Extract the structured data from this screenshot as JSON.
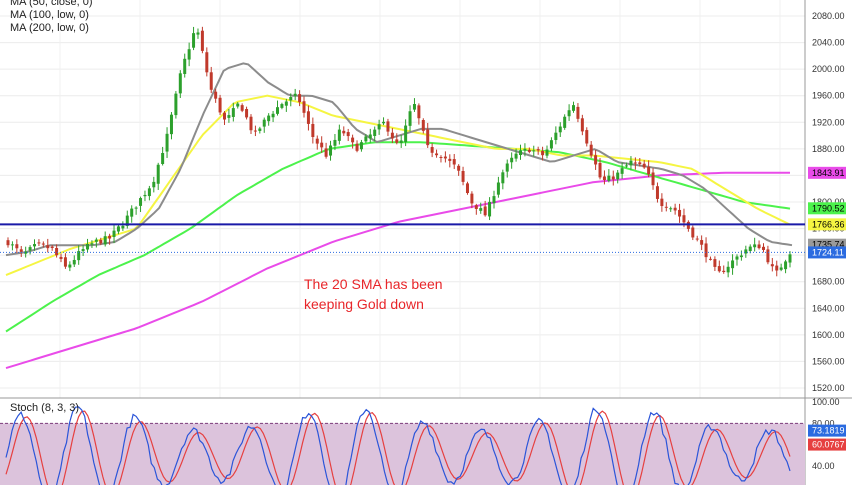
{
  "legend": {
    "ma50": "MA (50, close, 0)",
    "ma100": "MA (100, low, 0)",
    "ma200": "MA (200, low, 0)",
    "stoch": "Stoch (8, 3, 3)"
  },
  "annotation": {
    "line1": "The 20 SMA has been",
    "line2": "keeping Gold down"
  },
  "colors": {
    "bull": "#2ca02c",
    "bear": "#c0392b",
    "ma20": "#8c8c8c",
    "ma50": "#f5f542",
    "ma100": "#4cf24c",
    "ma200": "#e94be9",
    "support": "#1a1aa8",
    "stochK": "#2b55d9",
    "stochD": "#e64040",
    "stochBg": "#dcc3dc"
  },
  "chart_data": [
    {
      "type": "candlestick",
      "title": "",
      "y_ticks": [
        2080.0,
        2040.0,
        2000.0,
        1960.0,
        1920.0,
        1880.0,
        1840.0,
        1800.0,
        1760.0,
        1720.0,
        1680.0,
        1640.0,
        1600.0,
        1560.0,
        1520.0
      ],
      "ylim": [
        1500,
        2100
      ],
      "support_level": 1766.36,
      "last_price_dotted": 1724.11,
      "price_tags": [
        {
          "value": 1843.91,
          "label": "1843.91",
          "bg": "#e94be9",
          "fg": "#000000"
        },
        {
          "value": 1790.52,
          "label": "1790.52",
          "bg": "#4cf24c",
          "fg": "#000000"
        },
        {
          "value": 1766.36,
          "label": "1766.36",
          "bg": "#f5f542",
          "fg": "#000000"
        },
        {
          "value": 1735.74,
          "label": "1735.74",
          "bg": "#9a9a9a",
          "fg": "#000000"
        },
        {
          "value": 1724.11,
          "label": "1724.11",
          "bg": "#2b6be0",
          "fg": "#ffffff"
        }
      ],
      "close_anchors": [
        1740,
        1720,
        1735,
        1730,
        1700,
        1725,
        1740,
        1745,
        1770,
        1800,
        1830,
        1900,
        2000,
        2065,
        1970,
        1920,
        1950,
        1900,
        1930,
        1950,
        1960,
        1900,
        1870,
        1910,
        1880,
        1900,
        1920,
        1880,
        1950,
        1880,
        1870,
        1850,
        1800,
        1780,
        1840,
        1870,
        1880,
        1870,
        1910,
        1950,
        1890,
        1830,
        1840,
        1860,
        1850,
        1800,
        1790,
        1760,
        1730,
        1690,
        1710,
        1730,
        1735,
        1690,
        1725
      ],
      "ma_anchors": {
        "ma20": [
          1720,
          1725,
          1735,
          1735,
          1735,
          1740,
          1760,
          1790,
          1850,
          1930,
          2000,
          2010,
          1980,
          1960,
          1960,
          1950,
          1910,
          1890,
          1900,
          1910,
          1910,
          1900,
          1890,
          1880,
          1870,
          1860,
          1870,
          1880,
          1860,
          1855,
          1850,
          1840,
          1820,
          1790,
          1760,
          1740,
          1735
        ],
        "ma50": [
          1690,
          1710,
          1730,
          1745,
          1760,
          1830,
          1900,
          1950,
          1960,
          1950,
          1930,
          1920,
          1910,
          1900,
          1890,
          1880,
          1880,
          1870,
          1870,
          1865,
          1860,
          1850,
          1820,
          1790,
          1766
        ],
        "ma100": [
          1605,
          1650,
          1690,
          1720,
          1760,
          1810,
          1850,
          1880,
          1890,
          1890,
          1885,
          1880,
          1875,
          1860,
          1840,
          1820,
          1800,
          1790
        ],
        "ma200": [
          1550,
          1580,
          1610,
          1650,
          1700,
          1740,
          1770,
          1790,
          1810,
          1830,
          1840,
          1844,
          1844
        ]
      }
    },
    {
      "type": "line",
      "title": "Stoch (8, 3, 3)",
      "y_ticks": [
        100.0,
        80.0,
        60.0,
        40.0
      ],
      "ylim": [
        0,
        105
      ],
      "band": [
        20,
        80
      ],
      "k_last": 73.1819,
      "d_last": 60.0767,
      "k_label": "73.1819",
      "d_label": "60.0767"
    }
  ]
}
